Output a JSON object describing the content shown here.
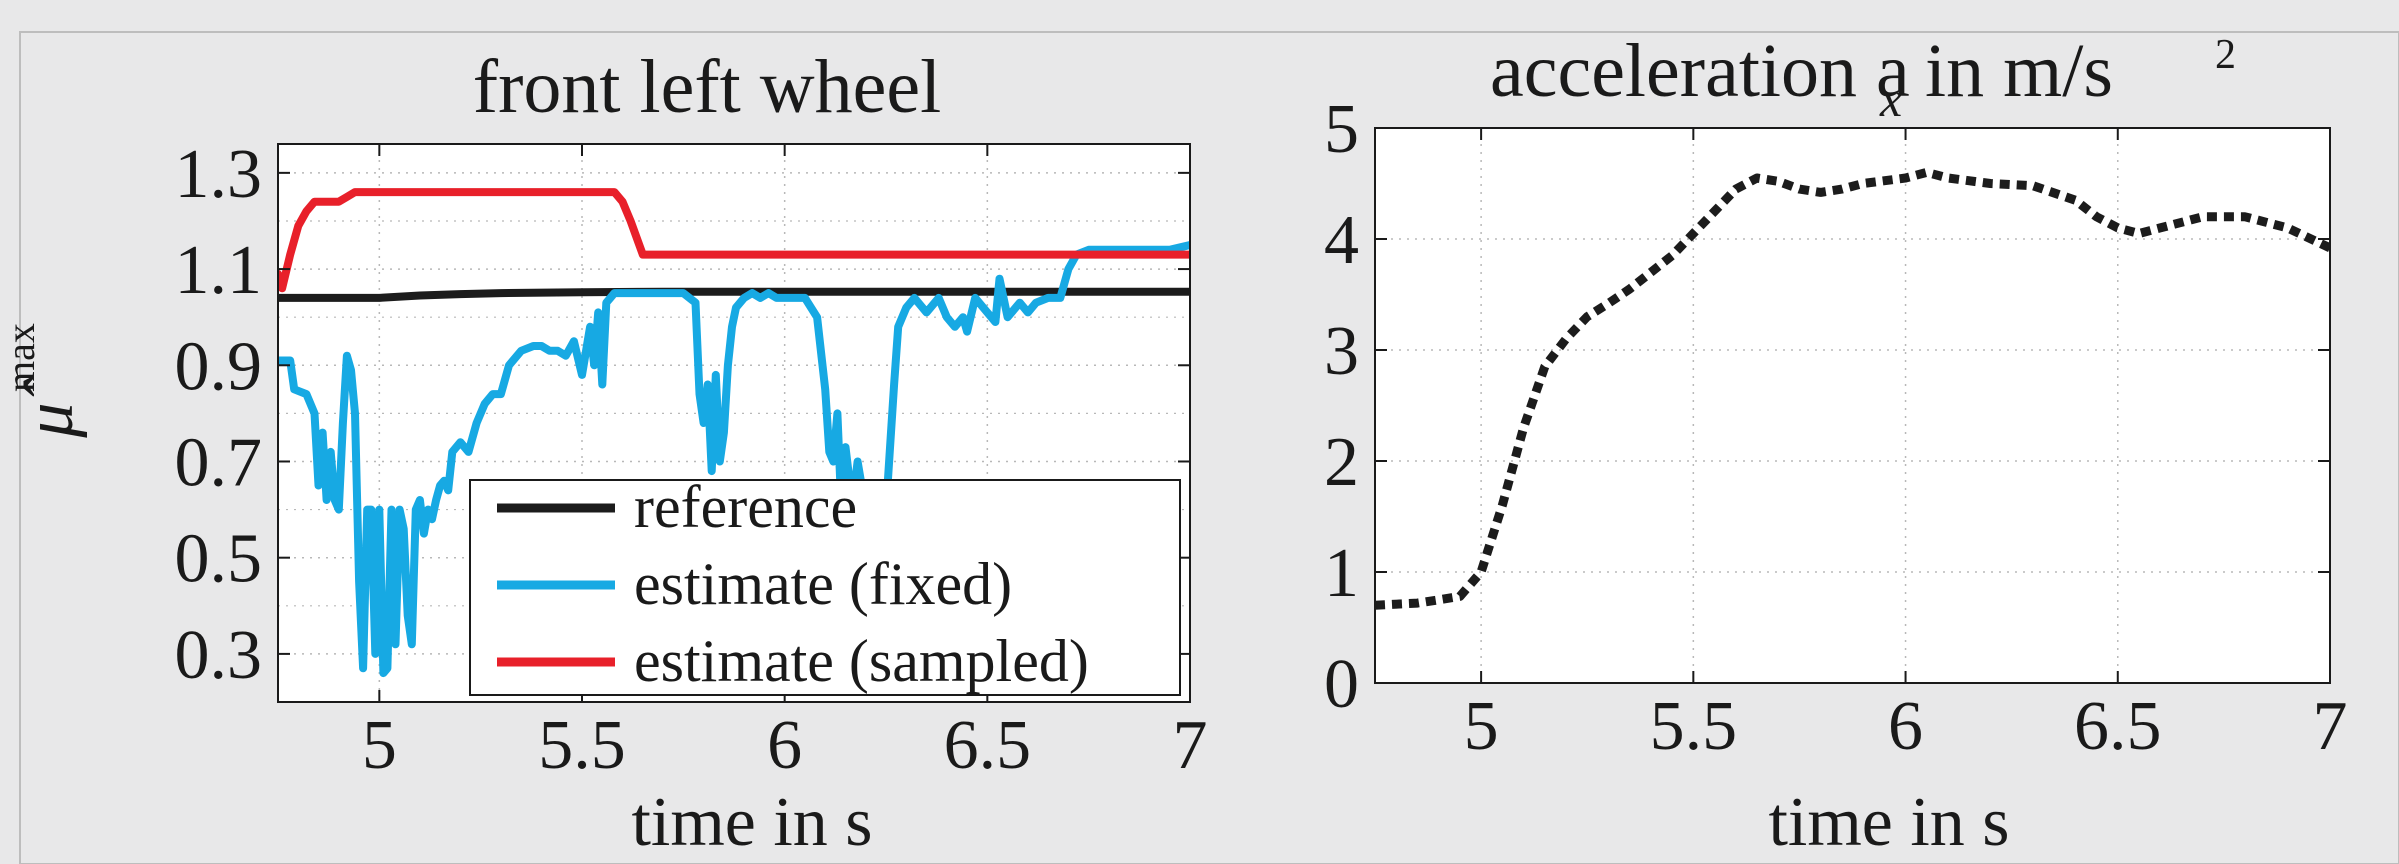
{
  "colors": {
    "figure_background": "#e8e8e9",
    "axes_background": "#ffffff",
    "reference": "#1c1c1c",
    "estimate_fixed": "#17a9e3",
    "estimate_sampled": "#e8202a",
    "acceleration": "#1c1c1c",
    "grid": "#b8b8b8"
  },
  "chart_data": [
    {
      "type": "line",
      "title": "front left wheel",
      "xlabel": "time in s",
      "ylabel": "μ̂",
      "ylabel_sup": "max",
      "xlim": [
        4.75,
        7.0
      ],
      "ylim": [
        0.2,
        1.36
      ],
      "xticks": [
        5,
        5.5,
        6,
        6.5,
        7
      ],
      "xtick_labels": [
        "5",
        "5.5",
        "6",
        "6.5",
        "7"
      ],
      "yticks": [
        0.3,
        0.5,
        0.7,
        0.9,
        1.1,
        1.3
      ],
      "ytick_labels": [
        "0.3",
        "0.5",
        "0.7",
        "0.9",
        "1.1",
        "1.3"
      ],
      "grid": true,
      "legend_position": "bottom-right",
      "series": [
        {
          "name": "reference",
          "style": "solid",
          "x": [
            4.75,
            4.8,
            4.9,
            5.0,
            5.1,
            5.2,
            5.3,
            5.5,
            5.7,
            6.0,
            6.5,
            7.0
          ],
          "y": [
            1.04,
            1.04,
            1.04,
            1.04,
            1.045,
            1.048,
            1.05,
            1.052,
            1.053,
            1.053,
            1.053,
            1.053
          ]
        },
        {
          "name": "estimate (fixed)",
          "style": "solid",
          "x": [
            4.75,
            4.78,
            4.79,
            4.82,
            4.84,
            4.85,
            4.86,
            4.87,
            4.88,
            4.89,
            4.9,
            4.91,
            4.92,
            4.93,
            4.94,
            4.95,
            4.96,
            4.97,
            4.98,
            4.99,
            5.0,
            5.01,
            5.02,
            5.03,
            5.04,
            5.05,
            5.06,
            5.07,
            5.08,
            5.09,
            5.1,
            5.11,
            5.12,
            5.13,
            5.14,
            5.15,
            5.16,
            5.17,
            5.18,
            5.2,
            5.22,
            5.24,
            5.26,
            5.28,
            5.3,
            5.32,
            5.35,
            5.38,
            5.4,
            5.42,
            5.44,
            5.46,
            5.48,
            5.5,
            5.52,
            5.53,
            5.54,
            5.55,
            5.56,
            5.57,
            5.58,
            5.6,
            5.65,
            5.7,
            5.75,
            5.78,
            5.79,
            5.8,
            5.81,
            5.82,
            5.83,
            5.84,
            5.85,
            5.86,
            5.87,
            5.88,
            5.9,
            5.92,
            5.94,
            5.96,
            5.98,
            6.0,
            6.05,
            6.08,
            6.1,
            6.11,
            6.12,
            6.13,
            6.14,
            6.15,
            6.16,
            6.17,
            6.18,
            6.2,
            6.22,
            6.24,
            6.25,
            6.27,
            6.28,
            6.3,
            6.32,
            6.35,
            6.38,
            6.4,
            6.42,
            6.44,
            6.45,
            6.47,
            6.5,
            6.52,
            6.53,
            6.55,
            6.58,
            6.6,
            6.62,
            6.65,
            6.68,
            6.7,
            6.72,
            6.75,
            6.8,
            6.85,
            6.9,
            6.95,
            7.0
          ],
          "y": [
            0.91,
            0.91,
            0.85,
            0.84,
            0.8,
            0.65,
            0.76,
            0.62,
            0.72,
            0.62,
            0.6,
            0.78,
            0.92,
            0.89,
            0.8,
            0.45,
            0.27,
            0.6,
            0.6,
            0.3,
            0.6,
            0.26,
            0.27,
            0.6,
            0.32,
            0.6,
            0.56,
            0.38,
            0.32,
            0.6,
            0.62,
            0.55,
            0.6,
            0.58,
            0.62,
            0.65,
            0.66,
            0.64,
            0.72,
            0.74,
            0.72,
            0.78,
            0.82,
            0.84,
            0.84,
            0.9,
            0.93,
            0.94,
            0.94,
            0.93,
            0.93,
            0.92,
            0.95,
            0.88,
            0.98,
            0.9,
            1.01,
            0.86,
            1.03,
            1.04,
            1.05,
            1.05,
            1.05,
            1.05,
            1.05,
            1.03,
            0.84,
            0.78,
            0.86,
            0.68,
            0.88,
            0.7,
            0.76,
            0.9,
            0.98,
            1.02,
            1.04,
            1.05,
            1.04,
            1.05,
            1.04,
            1.04,
            1.04,
            1.0,
            0.85,
            0.72,
            0.7,
            0.8,
            0.6,
            0.73,
            0.66,
            0.63,
            0.7,
            0.6,
            0.6,
            0.52,
            0.6,
            0.86,
            0.98,
            1.02,
            1.04,
            1.01,
            1.04,
            1.0,
            0.98,
            1.0,
            0.97,
            1.04,
            1.01,
            0.99,
            1.08,
            1.0,
            1.03,
            1.01,
            1.03,
            1.04,
            1.04,
            1.1,
            1.13,
            1.14,
            1.14,
            1.14,
            1.14,
            1.14,
            1.15
          ]
        },
        {
          "name": "estimate (sampled)",
          "style": "solid",
          "x": [
            4.75,
            4.76,
            4.78,
            4.8,
            4.82,
            4.84,
            4.86,
            4.88,
            4.9,
            4.92,
            4.94,
            4.96,
            5.0,
            5.2,
            5.4,
            5.58,
            5.6,
            5.62,
            5.65,
            6.0,
            6.5,
            7.0
          ],
          "y": [
            1.09,
            1.06,
            1.13,
            1.19,
            1.22,
            1.24,
            1.24,
            1.24,
            1.24,
            1.25,
            1.26,
            1.26,
            1.26,
            1.26,
            1.26,
            1.26,
            1.24,
            1.2,
            1.13,
            1.13,
            1.13,
            1.13
          ]
        }
      ]
    },
    {
      "type": "line",
      "title": "acceleration a",
      "title_subscript": "x",
      "title_unit": "in m/s",
      "title_unit_sup": "2",
      "xlabel": "time in s",
      "ylabel": "",
      "xlim": [
        4.75,
        7.0
      ],
      "ylim": [
        0,
        5
      ],
      "xticks": [
        5,
        5.5,
        6,
        6.5,
        7
      ],
      "xtick_labels": [
        "5",
        "5.5",
        "6",
        "6.5",
        "7"
      ],
      "yticks": [
        0,
        1,
        2,
        3,
        4,
        5
      ],
      "ytick_labels": [
        "0",
        "1",
        "2",
        "3",
        "4",
        "5"
      ],
      "grid": true,
      "series": [
        {
          "name": "",
          "style": "dotted",
          "x": [
            4.75,
            4.85,
            4.9,
            4.95,
            5.0,
            5.05,
            5.1,
            5.15,
            5.2,
            5.25,
            5.3,
            5.35,
            5.4,
            5.45,
            5.5,
            5.55,
            5.6,
            5.65,
            5.7,
            5.75,
            5.8,
            5.85,
            5.9,
            6.0,
            6.05,
            6.1,
            6.2,
            6.3,
            6.4,
            6.45,
            6.5,
            6.55,
            6.6,
            6.7,
            6.8,
            6.9,
            7.0
          ],
          "y": [
            0.7,
            0.72,
            0.75,
            0.78,
            1.0,
            1.6,
            2.3,
            2.85,
            3.1,
            3.3,
            3.42,
            3.55,
            3.7,
            3.85,
            4.05,
            4.25,
            4.45,
            4.55,
            4.52,
            4.45,
            4.42,
            4.45,
            4.5,
            4.55,
            4.6,
            4.55,
            4.5,
            4.48,
            4.35,
            4.2,
            4.1,
            4.05,
            4.1,
            4.2,
            4.2,
            4.1,
            3.92
          ]
        }
      ]
    }
  ]
}
